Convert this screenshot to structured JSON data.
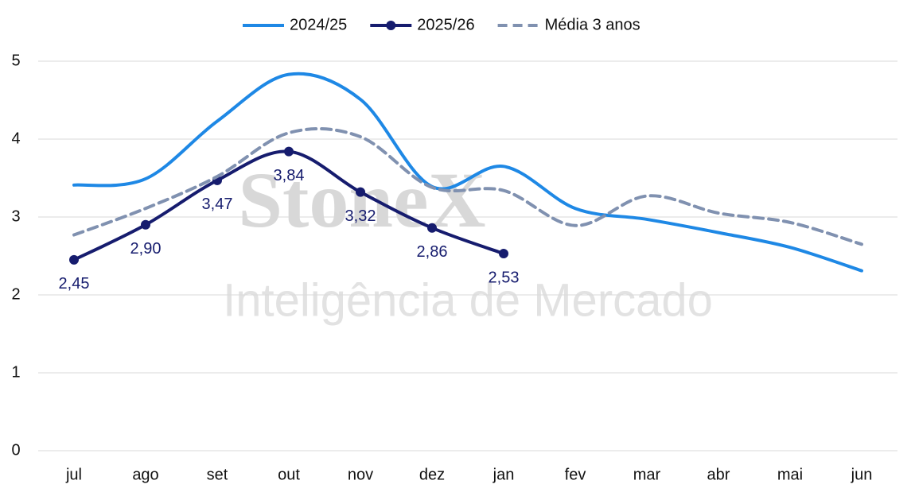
{
  "chart_data": {
    "type": "line",
    "watermark": [
      "StoneX",
      "Inteligência de Mercado"
    ],
    "categories": [
      "jul",
      "ago",
      "set",
      "out",
      "nov",
      "dez",
      "jan",
      "fev",
      "mar",
      "abr",
      "mai",
      "jun"
    ],
    "series": [
      {
        "name": "2024/25",
        "color": "#1e88e5",
        "style": "solid",
        "markers": false,
        "values": [
          3.41,
          3.49,
          4.23,
          4.83,
          4.51,
          3.39,
          3.65,
          3.11,
          2.97,
          2.8,
          2.61,
          2.31
        ]
      },
      {
        "name": "2025/26",
        "color": "#161c6e",
        "style": "solid",
        "markers": true,
        "values": [
          2.45,
          2.9,
          3.47,
          3.84,
          3.32,
          2.86,
          2.53,
          null,
          null,
          null,
          null,
          null
        ],
        "value_labels": [
          "2,45",
          "2,90",
          "3,47",
          "3,84",
          "3,32",
          "2,86",
          "2,53",
          null,
          null,
          null,
          null,
          null
        ]
      },
      {
        "name": "Média 3 anos",
        "color": "#8091b0",
        "style": "dashed",
        "markers": false,
        "values": [
          2.77,
          3.11,
          3.52,
          4.08,
          4.03,
          3.38,
          3.34,
          2.89,
          3.27,
          3.05,
          2.93,
          2.65
        ]
      }
    ],
    "ylim": [
      0,
      5
    ],
    "yticks": [
      0,
      1,
      2,
      3,
      4,
      5
    ],
    "grid": true,
    "legend": "top"
  }
}
